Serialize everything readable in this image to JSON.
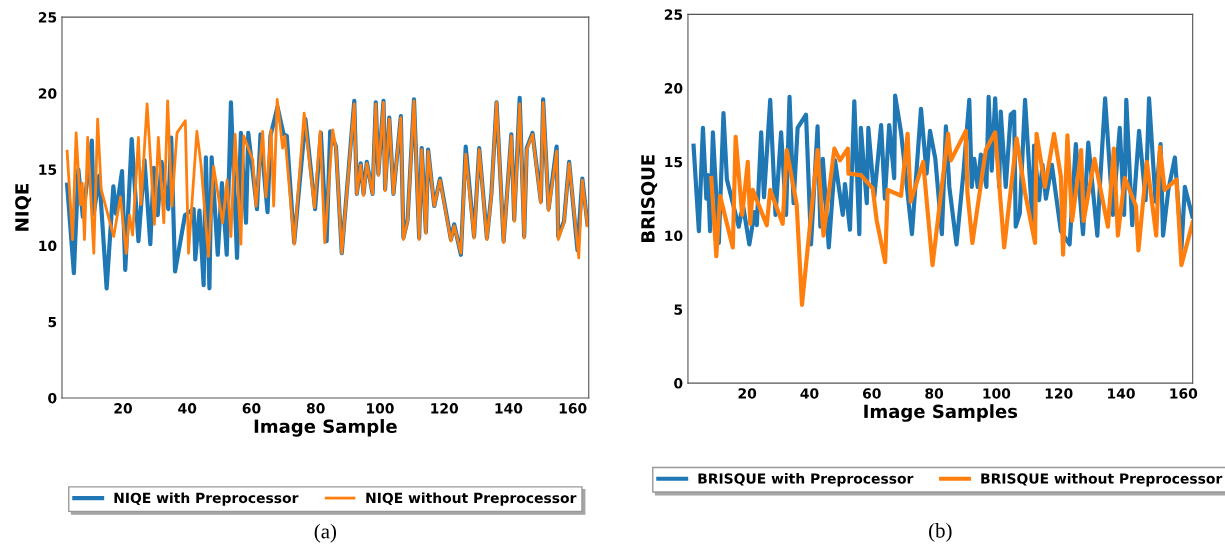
{
  "chart_data": [
    {
      "type": "line",
      "xlabel": "Image Sample",
      "ylabel": "NIQE",
      "xlim": [
        1,
        165
      ],
      "ylim": [
        0,
        25
      ],
      "xticks": [
        20,
        40,
        60,
        80,
        100,
        120,
        140,
        160
      ],
      "yticks": [
        0,
        5,
        10,
        15,
        20,
        25
      ],
      "grid": false,
      "legend": "bottom",
      "annotations": [
        "(a)"
      ],
      "series": [
        {
          "name": "NIQE with Preprocessor",
          "color": "#1f77b4",
          "x": [
            2.6,
            4.7,
            6.1,
            7.5,
            10.3,
            10.9,
            12.6,
            14.9,
            17.0,
            17.8,
            19.7,
            20.7,
            22.7,
            24.8,
            26.7,
            28.5,
            29.6,
            30.8,
            32.0,
            34.1,
            35.0,
            36.2,
            39.3,
            42.0,
            42.5,
            43.8,
            45.1,
            45.8,
            46.9,
            47.6,
            49.5,
            50.8,
            52.3,
            53.6,
            55.5,
            56.7,
            58.3,
            59.0,
            61.7,
            62.8,
            65.0,
            65.9,
            68.1,
            70.0,
            71.0,
            73.3,
            76.8,
            79.8,
            81.6,
            83.4,
            84.5,
            86.3,
            88.1,
            92.0,
            92.8,
            94.0,
            94.9,
            95.9,
            97.7,
            98.7,
            99.5,
            101.1,
            101.6,
            102.9,
            104.2,
            106.5,
            107.3,
            108.6,
            110.6,
            112.2,
            113.0,
            114.3,
            115.0,
            116.9,
            118.7,
            122.1,
            123.1,
            125.2,
            126.7,
            129.3,
            130.9,
            133.3,
            134.7,
            136.3,
            138.5,
            140.9,
            141.8,
            143.5,
            144.9,
            145.7,
            147.5,
            150.1,
            150.8,
            152.5,
            155.0,
            155.5,
            157.3,
            158.9,
            161.5,
            163.0,
            164.6
          ],
          "values": [
            14.0,
            8.2,
            15.0,
            11.9,
            16.9,
            12.1,
            14.6,
            7.2,
            13.9,
            12.1,
            14.9,
            8.4,
            17.0,
            10.3,
            15.6,
            10.1,
            15.1,
            12.0,
            15.5,
            12.4,
            17.1,
            8.3,
            12.0,
            12.4,
            9.1,
            12.3,
            7.4,
            15.8,
            7.2,
            15.8,
            9.4,
            14.1,
            9.4,
            19.4,
            9.2,
            17.4,
            11.5,
            17.4,
            12.4,
            17.3,
            12.2,
            17.2,
            19.1,
            17.3,
            17.2,
            10.2,
            18.3,
            12.4,
            17.4,
            10.3,
            17.5,
            16.5,
            9.5,
            19.5,
            13.4,
            15.4,
            13.4,
            15.5,
            13.4,
            19.4,
            14.7,
            19.5,
            13.7,
            18.4,
            13.4,
            18.5,
            10.5,
            11.7,
            19.6,
            10.5,
            16.4,
            10.9,
            16.3,
            12.6,
            14.4,
            10.4,
            11.4,
            9.4,
            16.5,
            10.6,
            16.4,
            10.5,
            13.4,
            19.4,
            10.3,
            17.3,
            11.7,
            19.7,
            10.6,
            16.4,
            17.4,
            12.9,
            19.6,
            12.4,
            16.5,
            10.6,
            11.6,
            15.5,
            9.7,
            14.4,
            11.4
          ]
        },
        {
          "name": "NIQE without Preprocessor",
          "color": "#ff7f0e",
          "x": [
            2.6,
            4.3,
            5.4,
            6.7,
            7.3,
            8.0,
            9.0,
            10.9,
            12.1,
            13.2,
            17.1,
            19.2,
            21.0,
            22.0,
            23.0,
            24.8,
            25.6,
            27.5,
            29.8,
            31.0,
            32.7,
            33.9,
            35.2,
            36.8,
            39.4,
            40.4,
            43.0,
            44.3,
            46.6,
            48.2,
            51.0,
            52.4,
            53.6,
            54.9,
            56.7,
            57.6,
            60.4,
            61.4,
            63.5,
            64.5,
            66.1,
            66.9,
            68.0,
            69.7,
            70.4,
            73.3,
            76.4,
            79.6,
            81.4,
            82.8,
            85.3,
            86.3,
            88.1,
            92.0,
            92.8,
            94.0,
            94.9,
            95.9,
            97.7,
            98.7,
            99.5,
            101.1,
            101.6,
            102.9,
            104.2,
            106.5,
            107.3,
            108.6,
            110.6,
            112.2,
            113.0,
            114.3,
            115.0,
            116.9,
            118.7,
            122.1,
            123.1,
            125.2,
            126.7,
            129.3,
            130.9,
            133.3,
            134.7,
            136.3,
            138.5,
            140.9,
            141.8,
            143.5,
            144.9,
            145.7,
            147.5,
            150.1,
            150.8,
            152.5,
            155.0,
            155.5,
            157.3,
            158.9,
            161.9,
            163.0,
            164.6
          ],
          "values": [
            16.2,
            10.4,
            17.4,
            12.7,
            14.1,
            10.4,
            17.1,
            9.5,
            18.3,
            13.7,
            10.6,
            13.2,
            9.5,
            12.0,
            10.7,
            17.1,
            12.7,
            19.3,
            11.4,
            17.1,
            11.5,
            19.5,
            12.6,
            17.4,
            18.2,
            9.5,
            17.5,
            15.3,
            9.3,
            15.2,
            11.5,
            14.3,
            10.6,
            17.3,
            10.1,
            17.2,
            15.6,
            12.6,
            17.5,
            13.2,
            17.6,
            12.6,
            19.6,
            16.4,
            17.2,
            10.1,
            18.7,
            12.5,
            17.5,
            10.2,
            17.6,
            16.4,
            9.5,
            19.3,
            13.4,
            15.3,
            13.3,
            15.4,
            13.4,
            19.3,
            14.6,
            19.4,
            13.6,
            18.3,
            13.4,
            18.4,
            10.4,
            11.6,
            19.5,
            10.4,
            16.3,
            10.8,
            16.2,
            12.6,
            14.3,
            10.3,
            11.3,
            9.5,
            16.0,
            10.5,
            16.3,
            10.4,
            13.3,
            19.4,
            10.2,
            17.2,
            11.6,
            19.3,
            10.5,
            16.3,
            17.3,
            12.8,
            19.4,
            12.3,
            16.2,
            10.4,
            11.5,
            15.4,
            9.2,
            14.3,
            11.3
          ]
        }
      ]
    },
    {
      "type": "line",
      "xlabel": "Image Samples",
      "ylabel": "BRISQUE",
      "xlim": [
        1,
        163
      ],
      "ylim": [
        0,
        25
      ],
      "xticks": [
        20,
        40,
        60,
        80,
        100,
        120,
        140,
        160
      ],
      "yticks": [
        0,
        5,
        10,
        15,
        20,
        25
      ],
      "grid": false,
      "legend": "bottom",
      "annotations": [
        "(b)"
      ],
      "series": [
        {
          "name": "BRISQUE with Preprocessor",
          "color": "#1f77b4",
          "x": [
            2.8,
            4.5,
            5.8,
            6.9,
            7.4,
            8.1,
            9.0,
            10.9,
            12.4,
            13.5,
            17.3,
            18.1,
            18.8,
            20.7,
            22.4,
            23.1,
            24.5,
            25.4,
            27.4,
            29.1,
            30.9,
            32.5,
            33.6,
            34.9,
            36.2,
            38.9,
            40.5,
            42.6,
            43.5,
            44.3,
            46.2,
            48.2,
            50.7,
            51.4,
            53.0,
            54.4,
            56.0,
            56.5,
            58.4,
            58.9,
            60.8,
            63.0,
            64.2,
            65.6,
            67.2,
            67.5,
            69.4,
            72.9,
            75.8,
            77.6,
            78.7,
            80.4,
            82.5,
            83.8,
            84.9,
            87.2,
            89.4,
            91.3,
            92.1,
            92.9,
            94.0,
            95.0,
            96.8,
            97.5,
            98.5,
            99.6,
            100.9,
            101.4,
            103.0,
            104.6,
            105.7,
            106.2,
            107.5,
            109.2,
            111.6,
            112.1,
            113.7,
            114.8,
            115.9,
            117.8,
            120.7,
            123.5,
            125.5,
            127.8,
            129.5,
            132.4,
            133.2,
            134.9,
            137.4,
            139.6,
            141.0,
            141.7,
            143.6,
            145.8,
            147.9,
            149.0,
            151.1,
            152.7,
            153.5,
            155.2,
            157.3,
            159.4,
            160.5,
            162.9
          ],
          "values": [
            16.1,
            10.3,
            17.3,
            12.5,
            14.1,
            10.3,
            17.0,
            9.5,
            18.3,
            13.8,
            10.6,
            11.5,
            11.9,
            9.4,
            11.6,
            10.7,
            17.0,
            12.6,
            19.2,
            11.4,
            17.0,
            11.4,
            19.4,
            12.2,
            17.3,
            18.2,
            9.4,
            17.4,
            10.6,
            15.2,
            9.2,
            15.1,
            11.4,
            13.5,
            10.4,
            19.1,
            10.1,
            17.3,
            12.2,
            17.3,
            12.6,
            17.5,
            12.5,
            17.5,
            13.9,
            19.5,
            17.0,
            10.1,
            18.6,
            14.2,
            17.1,
            15.2,
            10.1,
            17.4,
            13.3,
            9.4,
            14.2,
            19.2,
            13.3,
            15.2,
            13.3,
            15.5,
            13.3,
            19.4,
            14.4,
            19.3,
            13.3,
            18.4,
            13.3,
            18.2,
            18.4,
            10.6,
            11.5,
            19.2,
            10.8,
            16.1,
            12.4,
            14.8,
            12.5,
            14.8,
            10.3,
            9.4,
            16.2,
            10.1,
            16.3,
            10.0,
            13.3,
            19.3,
            11.4,
            17.3,
            11.4,
            19.2,
            10.7,
            17.1,
            12.4,
            19.3,
            12.3,
            16.2,
            10.0,
            13.1,
            15.3,
            9.1,
            13.3,
            11.3
          ]
        },
        {
          "name": "BRISQUE without Preprocessor",
          "color": "#ff7f0e",
          "x": [
            8.5,
            10.1,
            11.3,
            15.4,
            16.3,
            18.4,
            20.2,
            21.0,
            21.8,
            26.3,
            27.4,
            31.4,
            32.7,
            35.9,
            37.6,
            42.6,
            44.5,
            48.0,
            49.8,
            52.3,
            52.5,
            56.5,
            60.3,
            61.6,
            64.3,
            65.1,
            69.4,
            71.5,
            72.5,
            76.5,
            79.5,
            84.5,
            85.4,
            90.2,
            90.7,
            92.3,
            96.6,
            99.6,
            102.5,
            106.5,
            109.2,
            112.4,
            112.9,
            115.6,
            118.5,
            120.7,
            121.4,
            122.8,
            124.3,
            126.5,
            127.2,
            128.0,
            131.5,
            135.8,
            137.7,
            139.0,
            141.2,
            144.8,
            145.6,
            148.3,
            151.3,
            152.5,
            154.0,
            157.8,
            159.4,
            163.0
          ],
          "values": [
            13.9,
            8.6,
            12.7,
            9.2,
            16.7,
            11.4,
            15.0,
            10.8,
            13.1,
            10.7,
            13.1,
            10.8,
            15.8,
            12.1,
            5.3,
            15.8,
            10.0,
            15.9,
            15.1,
            15.9,
            14.2,
            14.1,
            13.2,
            11.0,
            8.2,
            13.1,
            12.7,
            16.9,
            12.3,
            15.0,
            8.0,
            16.9,
            15.1,
            17.1,
            12.9,
            9.5,
            15.8,
            17.0,
            9.2,
            16.6,
            12.9,
            9.5,
            16.9,
            13.3,
            16.9,
            14.0,
            8.7,
            16.8,
            11.0,
            14.5,
            15.8,
            11.0,
            15.2,
            10.6,
            15.9,
            10.0,
            13.9,
            12.0,
            9.0,
            15.0,
            10.0,
            16.0,
            13.1,
            13.8,
            8.0,
            10.9
          ]
        }
      ]
    }
  ]
}
